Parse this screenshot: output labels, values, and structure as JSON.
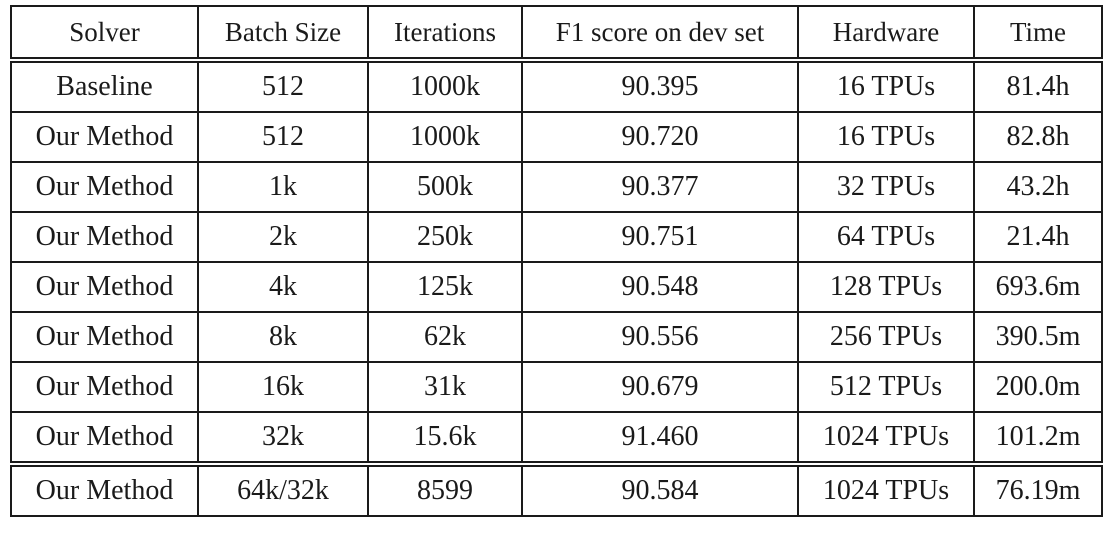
{
  "table": {
    "headers": [
      "Solver",
      "Batch Size",
      "Iterations",
      "F1 score on dev set",
      "Hardware",
      "Time"
    ],
    "rows": [
      [
        "Baseline",
        "512",
        "1000k",
        "90.395",
        "16 TPUs",
        "81.4h"
      ],
      [
        "Our Method",
        "512",
        "1000k",
        "90.720",
        "16 TPUs",
        "82.8h"
      ],
      [
        "Our Method",
        "1k",
        "500k",
        "90.377",
        "32 TPUs",
        "43.2h"
      ],
      [
        "Our Method",
        "2k",
        "250k",
        "90.751",
        "64 TPUs",
        "21.4h"
      ],
      [
        "Our Method",
        "4k",
        "125k",
        "90.548",
        "128 TPUs",
        "693.6m"
      ],
      [
        "Our Method",
        "8k",
        "62k",
        "90.556",
        "256 TPUs",
        "390.5m"
      ],
      [
        "Our Method",
        "16k",
        "31k",
        "90.679",
        "512 TPUs",
        "200.0m"
      ],
      [
        "Our Method",
        "32k",
        "15.6k",
        "91.460",
        "1024 TPUs",
        "101.2m"
      ]
    ],
    "final_row": [
      "Our Method",
      "64k/32k",
      "8599",
      "90.584",
      "1024 TPUs",
      "76.19m"
    ]
  }
}
